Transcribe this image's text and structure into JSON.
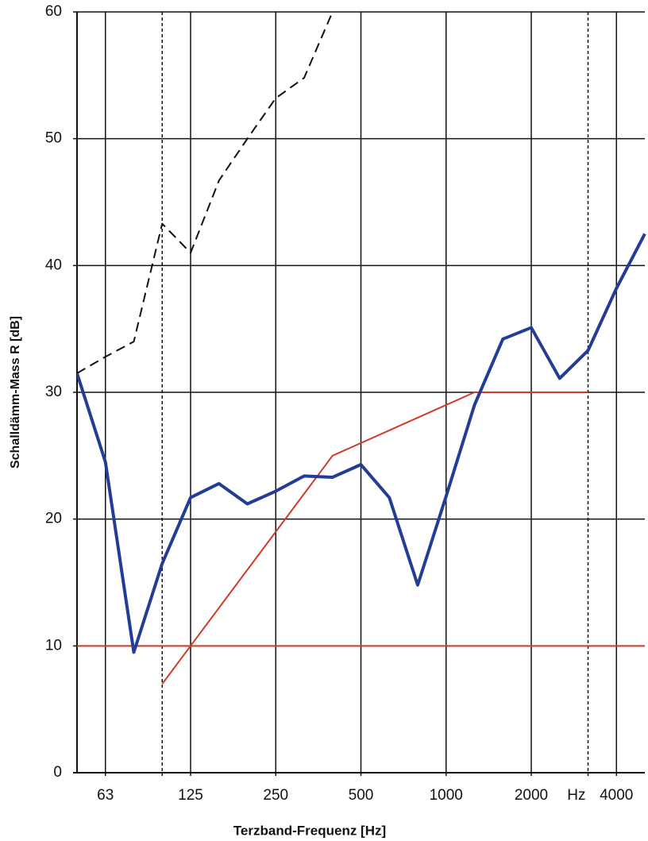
{
  "chart_data": {
    "type": "line",
    "xlabel": "Terzband-Frequenz [Hz]",
    "ylabel": "Schalldämm-Mass R [dB]",
    "x_unit": "Hz",
    "categories": [
      null,
      "63",
      null,
      null,
      "125",
      null,
      null,
      "250",
      null,
      null,
      "500",
      null,
      null,
      "1000",
      null,
      null,
      "2000",
      null,
      null,
      "4000",
      null
    ],
    "dashed_x": [
      3,
      18
    ],
    "ylim": [
      0,
      60
    ],
    "yticks": [
      0,
      10,
      20,
      30,
      40,
      50,
      60
    ],
    "grid": true,
    "series": [
      {
        "color": "#d03a2a",
        "style": "solid",
        "width": 2,
        "values": [
          10,
          10,
          10,
          10,
          10,
          10,
          10,
          10,
          10,
          10,
          10,
          10,
          10,
          10,
          10,
          10,
          10,
          10,
          10,
          10,
          10
        ]
      },
      {
        "color": "#111111",
        "style": "dashed",
        "width": 2,
        "values": [
          31.5,
          32.8,
          34,
          43.3,
          41,
          46.7,
          50,
          53.2,
          54.8,
          60,
          null,
          null,
          null,
          null,
          null,
          null,
          null,
          null,
          null,
          null,
          null
        ]
      },
      {
        "color": "#d03a2a",
        "style": "solid",
        "width": 2,
        "values": [
          null,
          null,
          null,
          7,
          10,
          13,
          16,
          19,
          22,
          25,
          26,
          27,
          28,
          29,
          30,
          30,
          30,
          30,
          30,
          null,
          null
        ]
      },
      {
        "color": "#223d96",
        "style": "solid",
        "width": 4,
        "values": [
          31.5,
          24.5,
          9.5,
          16.5,
          21.7,
          22.8,
          21.2,
          22.2,
          23.4,
          23.3,
          24.3,
          21.7,
          14.8,
          21.8,
          29,
          34.2,
          35.1,
          31.1,
          33.3,
          38.2,
          42.5
        ]
      }
    ]
  }
}
